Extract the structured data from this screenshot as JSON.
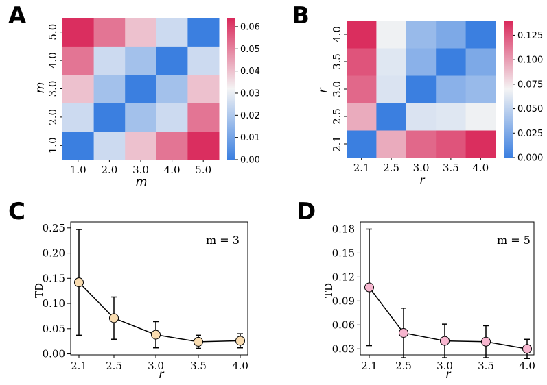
{
  "panels": {
    "A": "A",
    "B": "B",
    "C": "C",
    "D": "D"
  },
  "chart_data": [
    {
      "id": "A",
      "type": "heatmap",
      "title": "",
      "xlabel": "m",
      "ylabel": "m",
      "x_categories": [
        "1.0",
        "2.0",
        "3.0",
        "4.0",
        "5.0"
      ],
      "y_categories": [
        "1.0",
        "2.0",
        "3.0",
        "4.0",
        "5.0"
      ],
      "values": [
        [
          0.0,
          0.025,
          0.04,
          0.052,
          0.063
        ],
        [
          0.025,
          0.0,
          0.018,
          0.025,
          0.052
        ],
        [
          0.04,
          0.018,
          0.0,
          0.018,
          0.04
        ],
        [
          0.052,
          0.025,
          0.018,
          0.0,
          0.025
        ],
        [
          0.063,
          0.052,
          0.04,
          0.025,
          0.0
        ]
      ],
      "colorbar": {
        "min": 0.0,
        "max": 0.064,
        "ticks": [
          0.0,
          0.01,
          0.02,
          0.03,
          0.04,
          0.05,
          0.06
        ],
        "tick_labels": [
          "0.00",
          "0.01",
          "0.02",
          "0.03",
          "0.04",
          "0.05",
          "0.06"
        ]
      },
      "colormap": {
        "low": "#3b7fe0",
        "mid": "#f4f4f4",
        "high": "#d9285a"
      }
    },
    {
      "id": "B",
      "type": "heatmap",
      "title": "",
      "xlabel": "r",
      "ylabel": "r",
      "x_categories": [
        "2.1",
        "2.5",
        "3.0",
        "3.5",
        "4.0"
      ],
      "y_categories": [
        "2.1",
        "2.5",
        "3.0",
        "3.5",
        "4.0"
      ],
      "values": [
        [
          0.0,
          0.095,
          0.118,
          0.125,
          0.138
        ],
        [
          0.095,
          0.0,
          0.06,
          0.062,
          0.068
        ],
        [
          0.118,
          0.06,
          0.0,
          0.03,
          0.035
        ],
        [
          0.125,
          0.062,
          0.03,
          0.0,
          0.025
        ],
        [
          0.138,
          0.068,
          0.035,
          0.025,
          0.0
        ]
      ],
      "colorbar": {
        "min": 0.0,
        "max": 0.14,
        "ticks": [
          0.0,
          0.025,
          0.05,
          0.075,
          0.1,
          0.125
        ],
        "tick_labels": [
          "0.000",
          "0.025",
          "0.050",
          "0.075",
          "0.100",
          "0.125"
        ]
      },
      "colormap": {
        "low": "#3b7fe0",
        "mid": "#f4f4f4",
        "high": "#d9285a"
      }
    },
    {
      "id": "C",
      "type": "line",
      "title": "",
      "annotation": "m = 3",
      "xlabel": "r",
      "ylabel": "TD",
      "x": [
        "2.1",
        "2.5",
        "3.0",
        "3.5",
        "4.0"
      ],
      "y": [
        0.142,
        0.071,
        0.038,
        0.024,
        0.026
      ],
      "yerr": [
        0.105,
        0.042,
        0.026,
        0.013,
        0.014
      ],
      "yticks": [
        "0.00",
        "0.05",
        "0.10",
        "0.15",
        "0.20",
        "0.25"
      ],
      "ylim": [
        -0.002,
        0.262
      ],
      "marker_color": "#f9dcb0"
    },
    {
      "id": "D",
      "type": "line",
      "title": "",
      "annotation": "m = 5",
      "xlabel": "r",
      "ylabel": "TD",
      "x": [
        "2.1",
        "2.5",
        "3.0",
        "3.5",
        "4.0"
      ],
      "y": [
        0.107,
        0.05,
        0.04,
        0.039,
        0.03
      ],
      "yerr": [
        0.073,
        0.031,
        0.021,
        0.02,
        0.012
      ],
      "yticks": [
        "0.03",
        "0.06",
        "0.09",
        "0.12",
        "0.15",
        "0.18"
      ],
      "ylim": [
        0.0225,
        0.189
      ],
      "marker_color": "#f7b6cf"
    }
  ]
}
